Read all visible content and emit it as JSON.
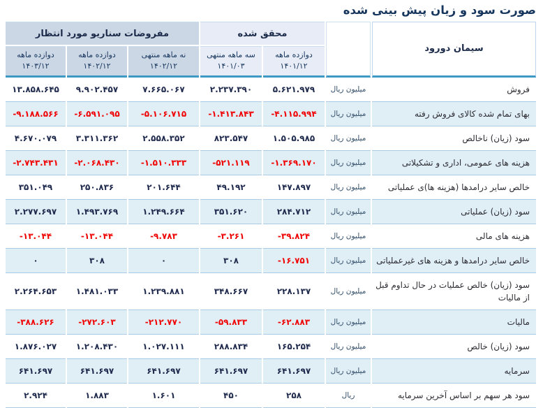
{
  "title": "صورت سود و زیان پیش بینی شده",
  "company": "سیمان دورود",
  "colors": {
    "accent_teal_rule": "#3e9ac5",
    "realized_header_bg": "#e7ecf7",
    "expected_header_bg": "#ccd7e6",
    "alt_row_bg": "#e0eef6",
    "negative_value": "#f00505",
    "title_text": "#17365d"
  },
  "header": {
    "groups": [
      {
        "label": "محقق شده",
        "span": 2
      },
      {
        "label": "مفروضات سناریو مورد انتظار",
        "span": 3
      }
    ],
    "periods": [
      {
        "line1": "دوازده ماهه",
        "line2": "۱۴۰۱/۱۲",
        "group": "realized"
      },
      {
        "line1": "سه ماهه منتهی",
        "line2": "۱۴۰۱/۰۳",
        "group": "realized"
      },
      {
        "line1": "نه ماهه منتهی",
        "line2": "۱۴۰۲/۱۲",
        "group": "expected"
      },
      {
        "line1": "دوازده ماهه",
        "line2": "۱۴۰۲/۱۲",
        "group": "expected"
      },
      {
        "line1": "دوازده ماهه",
        "line2": "۱۴۰۳/۱۲",
        "group": "expected"
      }
    ]
  },
  "rows": [
    {
      "label": "فروش",
      "unit": "میلیون ریال",
      "values": [
        "۵.۶۲۱.۹۷۹",
        "۲.۲۳۷.۳۹۰",
        "۷.۶۶۵.۰۶۷",
        "۹.۹۰۲.۴۵۷",
        "۱۳.۸۵۸.۶۴۵"
      ]
    },
    {
      "label": "بهای تمام شده کالای فروش رفته",
      "unit": "میلیون ریال",
      "values": [
        "-۴.۱۱۵.۹۹۴",
        "-۱.۴۱۳.۸۴۳",
        "-۵.۱۰۶.۷۱۵",
        "-۶.۵۹۱.۰۹۵",
        "-۹.۱۸۸.۵۶۶"
      ]
    },
    {
      "label": "سود (زیان) ناخالص",
      "unit": "میلیون ریال",
      "values": [
        "۱.۵۰۵.۹۸۵",
        "۸۲۳.۵۴۷",
        "۲.۵۵۸.۳۵۲",
        "۳.۳۱۱.۳۶۲",
        "۴.۶۷۰.۰۷۹"
      ]
    },
    {
      "label": "هزینه های عمومی، اداری و تشکیلاتی",
      "unit": "میلیون ریال",
      "values": [
        "-۱.۳۶۹.۱۷۰",
        "-۵۲۱.۱۱۹",
        "-۱.۵۱۰.۳۳۳",
        "-۲.۰۶۸.۴۳۰",
        "-۲.۷۴۳.۴۳۱"
      ]
    },
    {
      "label": "خالص سایر درامدها (هزینه ها)ی عملیاتی",
      "unit": "میلیون ریال",
      "values": [
        "۱۴۷.۸۹۷",
        "۴۹.۱۹۲",
        "۲۰۱.۶۴۴",
        "۲۵۰.۸۳۶",
        "۳۵۱.۰۴۹"
      ]
    },
    {
      "label": "سود (زیان) عملیاتی",
      "unit": "میلیون ریال",
      "values": [
        "۲۸۴.۷۱۲",
        "۳۵۱.۶۲۰",
        "۱.۲۴۹.۶۶۴",
        "۱.۴۹۳.۷۶۹",
        "۲.۲۷۷.۶۹۷"
      ]
    },
    {
      "label": "هزینه های مالی",
      "unit": "میلیون ریال",
      "values": [
        "-۳۹.۸۲۴",
        "-۳.۲۶۱",
        "-۹.۷۸۳",
        "-۱۳.۰۴۴",
        "-۱۳.۰۴۴"
      ]
    },
    {
      "label": "خالص سایر درامدها و هزینه های غیرعملیاتی",
      "unit": "میلیون ریال",
      "values": [
        "-۱۶.۷۵۱",
        "۳۰۸",
        "۰",
        "۳۰۸",
        "۰"
      ]
    },
    {
      "label": "سود (زیان) خالص عملیات در حال تداوم قبل از مالیات",
      "unit": "میلیون ریال",
      "values": [
        "۲۲۸.۱۳۷",
        "۳۴۸.۶۶۷",
        "۱.۲۳۹.۸۸۱",
        "۱.۴۸۱.۰۳۳",
        "۲.۲۶۴.۶۵۳"
      ]
    },
    {
      "label": "مالیات",
      "unit": "میلیون ریال",
      "values": [
        "-۶۲.۸۸۳",
        "-۵۹.۸۳۳",
        "-۲۱۲.۷۷۰",
        "-۲۷۲.۶۰۳",
        "-۳۸۸.۶۲۶"
      ]
    },
    {
      "label": "سود (زیان) خالص",
      "unit": "میلیون ریال",
      "values": [
        "۱۶۵.۲۵۴",
        "۲۸۸.۸۳۴",
        "۱.۰۲۷.۱۱۱",
        "۱.۲۰۸.۴۳۰",
        "۱.۸۷۶.۰۲۷"
      ]
    },
    {
      "label": "سرمایه",
      "unit": "میلیون ریال",
      "values": [
        "۶۴۱.۶۹۷",
        "۶۴۱.۶۹۷",
        "۶۴۱.۶۹۷",
        "۶۴۱.۶۹۷",
        "۶۴۱.۶۹۷"
      ]
    },
    {
      "label": "سود هر سهم بر اساس آخرین سرمایه",
      "unit": "ریال",
      "values": [
        "۲۵۸",
        "۴۵۰",
        "۱.۶۰۱",
        "۱.۸۸۳",
        "۲.۹۲۴"
      ]
    }
  ]
}
